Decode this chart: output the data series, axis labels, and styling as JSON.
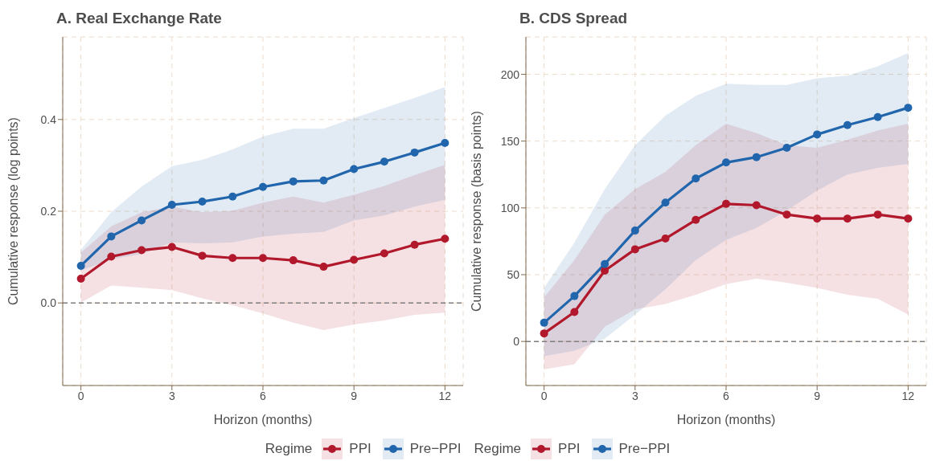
{
  "chart_data": [
    {
      "type": "line",
      "title": "A. Real Exchange Rate",
      "xlabel": "Horizon (months)",
      "ylabel": "Cumulative response (log points)",
      "legend_title": "Regime",
      "x": [
        0,
        1,
        2,
        3,
        4,
        5,
        6,
        7,
        8,
        9,
        10,
        11,
        12
      ],
      "xlim": [
        -0.6,
        12.6
      ],
      "xticks": [
        0,
        3,
        6,
        9,
        12
      ],
      "ylim": [
        -0.18,
        0.58
      ],
      "yticks": [
        {
          "value": 0,
          "label": "0.0"
        },
        0.2,
        0.4
      ],
      "grid": true,
      "legend": "bottom",
      "marker": "circle",
      "line_style": "solid",
      "ref_lines": [
        {
          "axis": "y",
          "value": 0,
          "color": "#7f7f7f",
          "line_style": "dashed"
        }
      ],
      "series": [
        {
          "name": "PPI",
          "color": "#b2182b",
          "values": [
            0.053,
            0.101,
            0.115,
            0.122,
            0.103,
            0.098,
            0.098,
            0.093,
            0.079,
            0.094,
            0.108,
            0.127,
            0.14
          ],
          "lower": [
            0.001,
            0.038,
            0.033,
            0.028,
            0.01,
            -0.005,
            -0.023,
            -0.043,
            -0.059,
            -0.047,
            -0.038,
            -0.026,
            -0.021
          ],
          "upper": [
            0.11,
            0.167,
            0.198,
            0.21,
            0.198,
            0.201,
            0.219,
            0.232,
            0.219,
            0.236,
            0.255,
            0.279,
            0.301
          ]
        },
        {
          "name": "Pre−PPI",
          "color": "#2166ac",
          "values": [
            0.081,
            0.145,
            0.18,
            0.214,
            0.221,
            0.232,
            0.253,
            0.265,
            0.267,
            0.292,
            0.308,
            0.328,
            0.349
          ],
          "lower": [
            0.071,
            0.095,
            0.107,
            0.132,
            0.13,
            0.132,
            0.145,
            0.151,
            0.155,
            0.18,
            0.191,
            0.21,
            0.225
          ],
          "upper": [
            0.116,
            0.198,
            0.254,
            0.298,
            0.312,
            0.335,
            0.363,
            0.38,
            0.38,
            0.403,
            0.425,
            0.447,
            0.471
          ]
        }
      ]
    },
    {
      "type": "line",
      "title": "B. CDS Spread",
      "xlabel": "Horizon (months)",
      "ylabel": "Cumulative response (basis points)",
      "legend_title": "Regime",
      "x": [
        0,
        1,
        2,
        3,
        4,
        5,
        6,
        7,
        8,
        9,
        10,
        11,
        12
      ],
      "xlim": [
        -0.6,
        12.6
      ],
      "xticks": [
        0,
        3,
        6,
        9,
        12
      ],
      "ylim": [
        -33,
        228
      ],
      "yticks": [
        0,
        50,
        100,
        150,
        200
      ],
      "grid": true,
      "legend": "bottom",
      "marker": "circle",
      "line_style": "solid",
      "ref_lines": [
        {
          "axis": "y",
          "value": 0,
          "color": "#7f7f7f",
          "line_style": "dashed"
        }
      ],
      "series": [
        {
          "name": "PPI",
          "color": "#b2182b",
          "values": [
            6,
            22,
            53,
            69,
            77,
            91,
            103,
            102,
            95,
            92,
            92,
            95,
            92
          ],
          "lower": [
            -21,
            -17,
            11,
            24,
            28,
            35,
            43,
            47,
            44,
            40,
            35,
            32,
            20
          ],
          "upper": [
            33,
            61,
            95,
            114,
            127,
            147,
            163,
            156,
            147,
            145,
            151,
            158,
            163
          ]
        },
        {
          "name": "Pre−PPI",
          "color": "#2166ac",
          "values": [
            14,
            34,
            58,
            83,
            104,
            122,
            134,
            138,
            145,
            155,
            162,
            168,
            175
          ],
          "lower": [
            -11,
            -7,
            2,
            20,
            39,
            61,
            76,
            85,
            98,
            113,
            125,
            130,
            133
          ],
          "upper": [
            40,
            74,
            114,
            147,
            169,
            184,
            193,
            192,
            192,
            197,
            199,
            206,
            216
          ]
        }
      ]
    }
  ]
}
